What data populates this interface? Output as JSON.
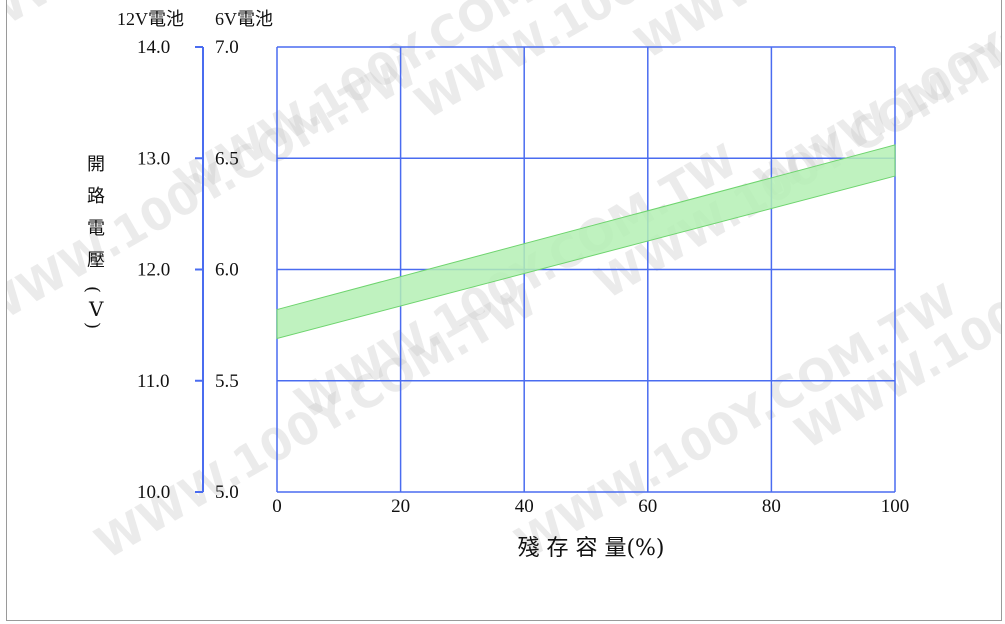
{
  "chart_data": {
    "type": "area",
    "header_left": "12V電池",
    "header_right": "6V電池",
    "ylabel_chars": [
      "開",
      "路",
      "電",
      "壓",
      "(",
      "V",
      ")"
    ],
    "xlabel": "殘 存 容 量(%)",
    "x_ticks": [
      0,
      20,
      40,
      60,
      80,
      100
    ],
    "y_ticks_12v": [
      "10.0",
      "11.0",
      "12.0",
      "13.0",
      "14.0"
    ],
    "y_ticks_6v": [
      "5.0",
      "5.5",
      "6.0",
      "6.5",
      "7.0"
    ],
    "x_range": [
      0,
      100
    ],
    "y_range_6v": [
      5.0,
      7.0
    ],
    "grid": true,
    "colors": {
      "band_fill": "#b4f0b4",
      "band_edge": "#6ed46e",
      "grid": "#4a6cf0",
      "axis": "#4a6cf0"
    },
    "series": [
      {
        "x": [
          0,
          100
        ],
        "upper_6v": [
          5.82,
          6.56
        ],
        "lower_6v": [
          5.69,
          6.42
        ]
      }
    ],
    "watermark": "WWW.100Y.COM.TW"
  }
}
